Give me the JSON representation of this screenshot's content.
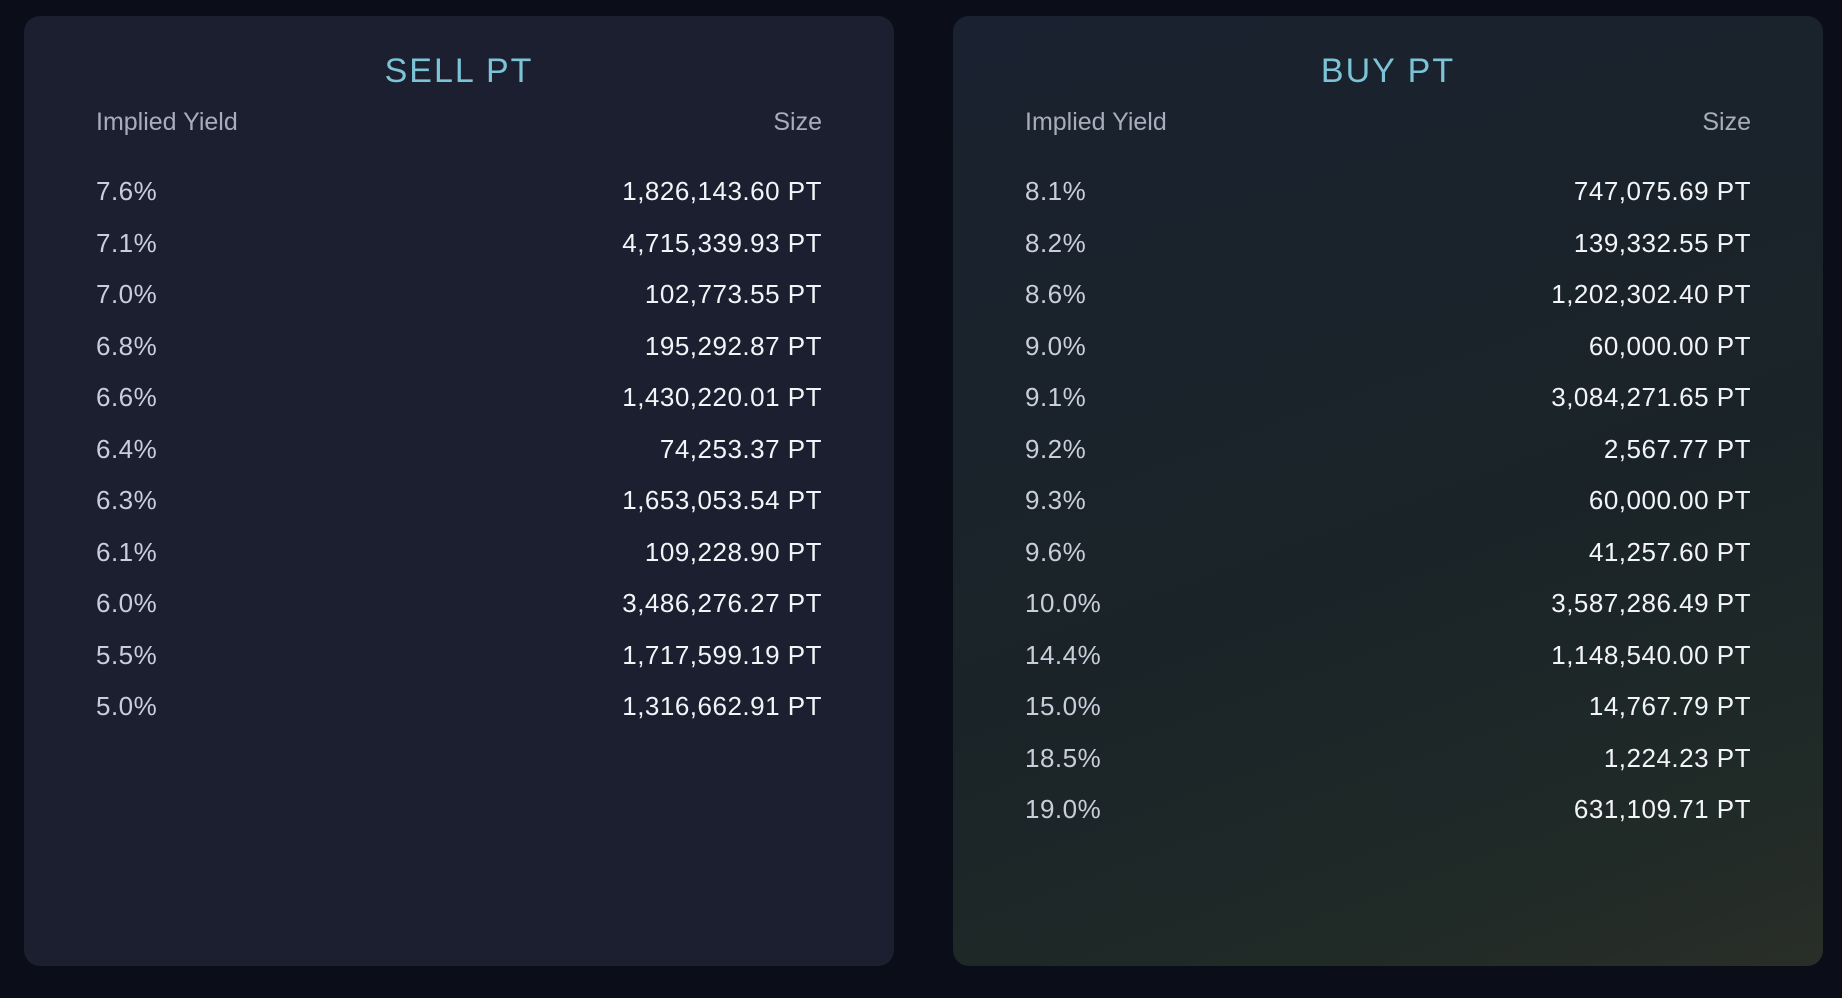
{
  "sell": {
    "title": "SELL PT",
    "col_yield": "Implied Yield",
    "col_size": "Size",
    "rows": [
      {
        "yield": "7.6%",
        "size": "1,826,143.60 PT"
      },
      {
        "yield": "7.1%",
        "size": "4,715,339.93 PT"
      },
      {
        "yield": "7.0%",
        "size": "102,773.55 PT"
      },
      {
        "yield": "6.8%",
        "size": "195,292.87 PT"
      },
      {
        "yield": "6.6%",
        "size": "1,430,220.01 PT"
      },
      {
        "yield": "6.4%",
        "size": "74,253.37 PT"
      },
      {
        "yield": "6.3%",
        "size": "1,653,053.54 PT"
      },
      {
        "yield": "6.1%",
        "size": "109,228.90 PT"
      },
      {
        "yield": "6.0%",
        "size": "3,486,276.27 PT"
      },
      {
        "yield": "5.5%",
        "size": "1,717,599.19 PT"
      },
      {
        "yield": "5.0%",
        "size": "1,316,662.91 PT"
      }
    ]
  },
  "buy": {
    "title": "BUY PT",
    "col_yield": "Implied Yield",
    "col_size": "Size",
    "rows": [
      {
        "yield": "8.1%",
        "size": "747,075.69 PT"
      },
      {
        "yield": "8.2%",
        "size": "139,332.55 PT"
      },
      {
        "yield": "8.6%",
        "size": "1,202,302.40 PT"
      },
      {
        "yield": "9.0%",
        "size": "60,000.00 PT"
      },
      {
        "yield": "9.1%",
        "size": "3,084,271.65 PT"
      },
      {
        "yield": "9.2%",
        "size": "2,567.77 PT"
      },
      {
        "yield": "9.3%",
        "size": "60,000.00 PT"
      },
      {
        "yield": "9.6%",
        "size": "41,257.60 PT"
      },
      {
        "yield": "10.0%",
        "size": "3,587,286.49 PT"
      },
      {
        "yield": "14.4%",
        "size": "1,148,540.00 PT"
      },
      {
        "yield": "15.0%",
        "size": "14,767.79 PT"
      },
      {
        "yield": "18.5%",
        "size": "1,224.23 PT"
      },
      {
        "yield": "19.0%",
        "size": "631,109.71 PT"
      }
    ]
  },
  "colors": {
    "title": "#7cc3d6",
    "header_text": "#a8adbb",
    "yield_text": "#c9ceda",
    "size_text": "#f2f4f8",
    "sell_panel_bg": "#1b1f30",
    "buy_panel_bg": "#1a2428",
    "page_bg": "#0b0e18"
  }
}
